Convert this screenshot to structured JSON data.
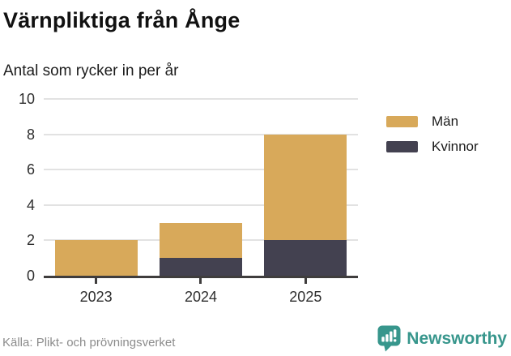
{
  "header": {
    "title": "Värnpliktiga från Ånge",
    "subtitle": "Antal som rycker in per år"
  },
  "chart_data": {
    "type": "bar",
    "stacked": true,
    "categories": [
      "2023",
      "2024",
      "2025"
    ],
    "series": [
      {
        "name": "Män",
        "color": "#d8a95a",
        "values": [
          2,
          2,
          6
        ]
      },
      {
        "name": "Kvinnor",
        "color": "#434150",
        "values": [
          0,
          1,
          2
        ]
      }
    ],
    "ylim": [
      0,
      10
    ],
    "yticks": [
      0,
      2,
      4,
      6,
      8,
      10
    ],
    "grid": true,
    "legend_position": "right"
  },
  "footer": {
    "source": "Källa: Plikt- och prövningsverket",
    "brand": "Newsworthy"
  },
  "colors": {
    "men": "#d8a95a",
    "women": "#434150",
    "brand_teal": "#37968c",
    "grid": "#e2e2e2",
    "axis": "#3f3d3d",
    "muted_text": "#8c8c8c"
  }
}
